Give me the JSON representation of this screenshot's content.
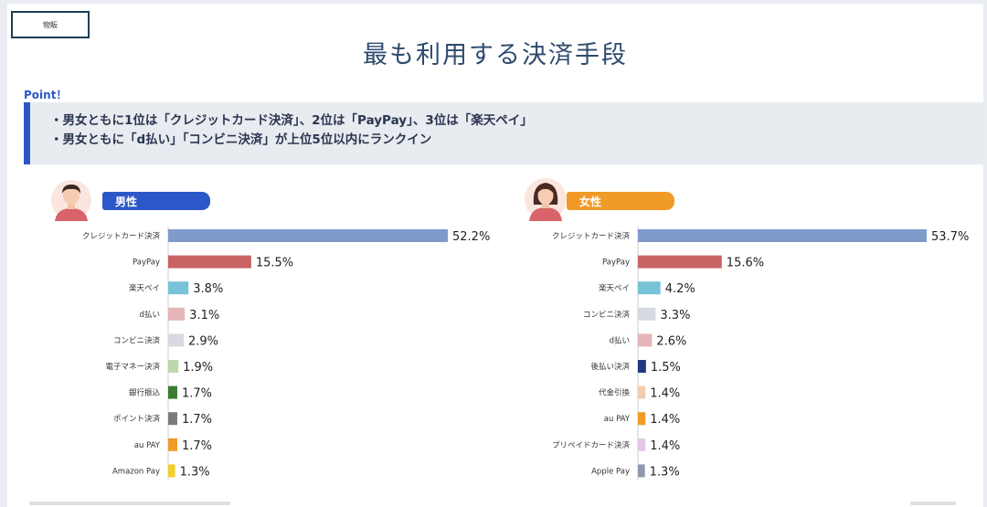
{
  "slide": {
    "tag": "物販",
    "title": "最も利用する決済手段",
    "point_label": "Point！",
    "points": [
      "・男女ともに1位は「クレジットカード決済」、2位は「PayPay」、3位は「楽天ペイ」",
      "・男女ともに「d払い」「コンビニ決済」が上位5位以内にランクイン"
    ]
  },
  "legend": {
    "male": "男性",
    "female": "女性"
  },
  "colors": {
    "accent_blue": "#2c57c8",
    "accent_orange": "#f09a28",
    "title": "#2e4a6e"
  },
  "chart_data": [
    {
      "type": "bar",
      "orientation": "horizontal",
      "title": "男性",
      "unit": "%",
      "categories": [
        "クレジットカード決済",
        "PayPay",
        "楽天ペイ",
        "d払い",
        "コンビニ決済",
        "電子マネー決済",
        "銀行振込",
        "ポイント決済",
        "au PAY",
        "Amazon Pay"
      ],
      "values": [
        52.2,
        15.5,
        3.8,
        3.1,
        2.9,
        1.9,
        1.7,
        1.7,
        1.7,
        1.3
      ],
      "labels": [
        "52.2%",
        "15.5%",
        "3.8%",
        "3.1%",
        "2.9%",
        "1.9%",
        "1.7%",
        "1.7%",
        "1.7%",
        "1.3%"
      ],
      "colors": [
        "#7f9bcc",
        "#c96464",
        "#78c3d8",
        "#e6b5b9",
        "#d7dbe1",
        "#bcd9ad",
        "#3a7d33",
        "#7b7b7b",
        "#f09a28",
        "#f3cd2f"
      ],
      "xlim": [
        0,
        60
      ]
    },
    {
      "type": "bar",
      "orientation": "horizontal",
      "title": "女性",
      "unit": "%",
      "categories": [
        "クレジットカード決済",
        "PayPay",
        "楽天ペイ",
        "コンビニ決済",
        "d払い",
        "後払い決済",
        "代金引換",
        "au PAY",
        "プリペイドカード決済",
        "Apple Pay"
      ],
      "values": [
        53.7,
        15.6,
        4.2,
        3.3,
        2.6,
        1.5,
        1.4,
        1.4,
        1.4,
        1.3
      ],
      "labels": [
        "53.7%",
        "15.6%",
        "4.2%",
        "3.3%",
        "2.6%",
        "1.5%",
        "1.4%",
        "1.4%",
        "1.4%",
        "1.3%"
      ],
      "colors": [
        "#7f9bcc",
        "#c96464",
        "#78c3d8",
        "#d7dbe1",
        "#e6b5b9",
        "#22397e",
        "#f3cdb0",
        "#f09a28",
        "#e3c8e4",
        "#8d9aad"
      ],
      "xlim": [
        0,
        60
      ]
    }
  ]
}
